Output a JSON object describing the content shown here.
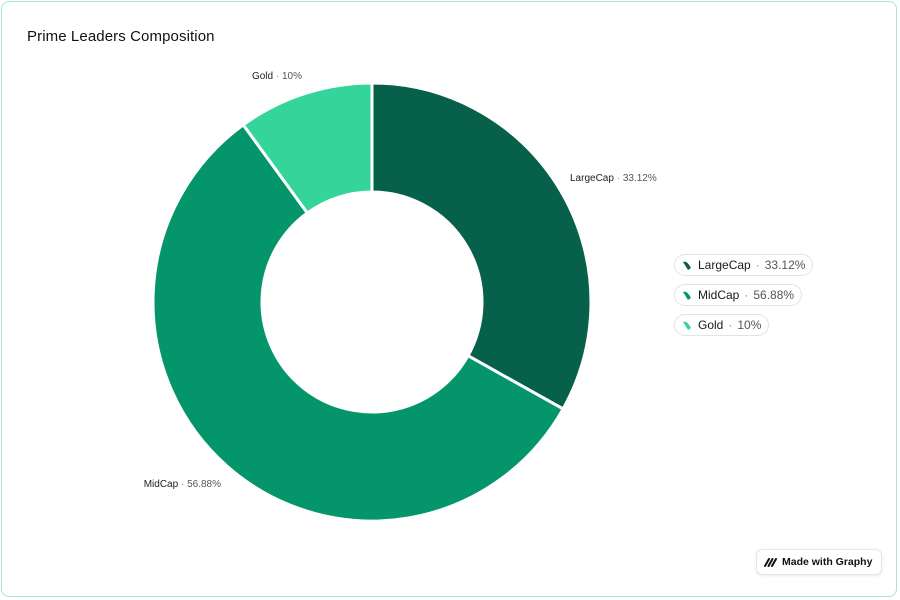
{
  "title": "Prime Leaders Composition",
  "chart_data": {
    "type": "pie",
    "variant": "donut",
    "title": "Prime Leaders Composition",
    "series": [
      {
        "name": "LargeCap",
        "value": 33.12,
        "label": "33.12%",
        "color": "#06604a"
      },
      {
        "name": "MidCap",
        "value": 56.88,
        "label": "56.88%",
        "color": "#05956a"
      },
      {
        "name": "Gold",
        "value": 10,
        "label": "10%",
        "color": "#35d49b"
      }
    ],
    "legend_position": "right",
    "separator": "·"
  },
  "badge": {
    "label": "Made with Graphy",
    "icon": "graphy-logo-icon"
  }
}
